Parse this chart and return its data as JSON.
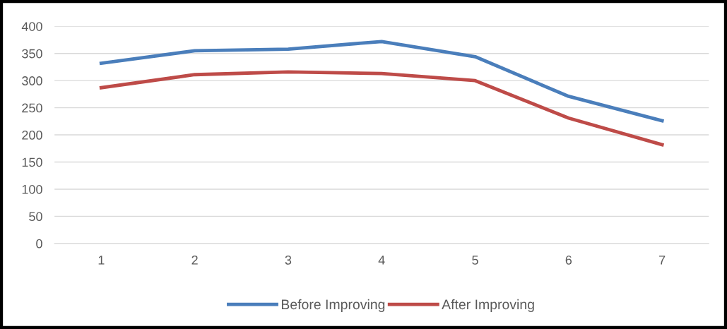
{
  "chart_data": {
    "type": "line",
    "categories": [
      "1",
      "2",
      "3",
      "4",
      "5",
      "6",
      "7"
    ],
    "series": [
      {
        "name": "Before Improving",
        "color": "#4a7ebb",
        "values": [
          332,
          355,
          358,
          372,
          344,
          271,
          226
        ]
      },
      {
        "name": "After Improving",
        "color": "#be4b48",
        "values": [
          287,
          311,
          316,
          313,
          300,
          231,
          182
        ]
      }
    ],
    "ylim": [
      0,
      400
    ],
    "yticks": [
      0,
      50,
      100,
      150,
      200,
      250,
      300,
      350,
      400
    ],
    "grid": "y",
    "legend": "bottom",
    "marker": "none",
    "line_style": "solid"
  }
}
